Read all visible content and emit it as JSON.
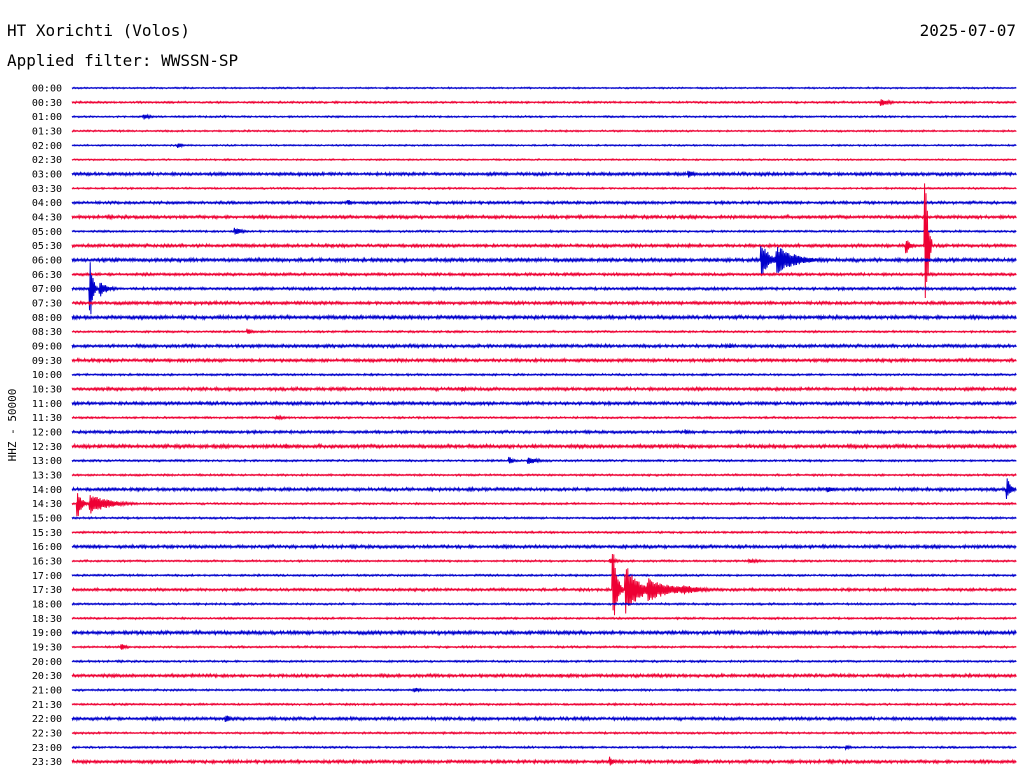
{
  "header": {
    "station": "HT Xorichti (Volos)",
    "date": "2025-07-07",
    "filter": "Applied filter: WWSSN-SP"
  },
  "colors": {
    "a": "#0000cc",
    "b": "#ee0033"
  },
  "chart_data": {
    "type": "line",
    "title": "HT Xorichti (Volos)",
    "subtitle": "Applied filter: WWSSN-SP",
    "ylabel": "HHZ - 50000",
    "grid": false,
    "x_unit": "minutes into row",
    "xlim": [
      0,
      30
    ],
    "row_labels": [
      "00:00",
      "00:30",
      "01:00",
      "01:30",
      "02:00",
      "02:30",
      "03:00",
      "03:30",
      "04:00",
      "04:30",
      "05:00",
      "05:30",
      "06:00",
      "06:30",
      "07:00",
      "07:30",
      "08:00",
      "08:30",
      "09:00",
      "09:30",
      "10:00",
      "10:30",
      "11:00",
      "11:30",
      "12:00",
      "12:30",
      "13:00",
      "13:30",
      "14:00",
      "14:30",
      "15:00",
      "15:30",
      "16:00",
      "16:30",
      "17:00",
      "17:30",
      "18:00",
      "18:30",
      "19:00",
      "19:30",
      "20:00",
      "20:30",
      "21:00",
      "21:30",
      "22:00",
      "22:30",
      "23:00",
      "23:30"
    ],
    "noise": [
      0.8,
      1.0,
      0.9,
      0.9,
      0.8,
      0.8,
      1.6,
      0.9,
      1.4,
      1.6,
      1.0,
      1.6,
      1.8,
      1.4,
      1.4,
      1.6,
      1.8,
      1.0,
      1.6,
      1.6,
      1.0,
      1.6,
      1.6,
      1.0,
      1.4,
      1.8,
      1.0,
      1.0,
      1.6,
      1.0,
      1.0,
      1.0,
      1.6,
      1.0,
      1.0,
      1.4,
      1.0,
      1.0,
      1.8,
      1.0,
      1.0,
      1.6,
      1.0,
      1.0,
      1.6,
      1.0,
      1.0,
      1.6
    ],
    "events": [
      {
        "row": 1,
        "t": 25.7,
        "amp": 4,
        "dur": 0.6
      },
      {
        "row": 2,
        "t": 2.3,
        "amp": 3,
        "dur": 0.5
      },
      {
        "row": 4,
        "t": 3.4,
        "amp": 3,
        "dur": 0.3
      },
      {
        "row": 6,
        "t": 19.6,
        "amp": 4,
        "dur": 0.4
      },
      {
        "row": 8,
        "t": 8.8,
        "amp": 3,
        "dur": 0.2
      },
      {
        "row": 10,
        "t": 5.2,
        "amp": 4,
        "dur": 0.6
      },
      {
        "row": 11,
        "t": 26.5,
        "amp": 8,
        "dur": 0.3
      },
      {
        "row": 11,
        "t": 27.1,
        "amp": 82,
        "dur": 0.2
      },
      {
        "row": 12,
        "t": 21.9,
        "amp": 18,
        "dur": 0.6
      },
      {
        "row": 12,
        "t": 22.4,
        "amp": 14,
        "dur": 1.5
      },
      {
        "row": 12,
        "t": 23.0,
        "amp": 5,
        "dur": 1.6
      },
      {
        "row": 14,
        "t": 0.6,
        "amp": 30,
        "dur": 0.2
      },
      {
        "row": 14,
        "t": 0.9,
        "amp": 8,
        "dur": 0.6
      },
      {
        "row": 17,
        "t": 5.6,
        "amp": 3,
        "dur": 0.4
      },
      {
        "row": 18,
        "t": 20.9,
        "amp": 3,
        "dur": 0.3
      },
      {
        "row": 21,
        "t": 12.4,
        "amp": 3,
        "dur": 0.3
      },
      {
        "row": 23,
        "t": 6.5,
        "amp": 2,
        "dur": 0.8
      },
      {
        "row": 24,
        "t": 19.5,
        "amp": 3,
        "dur": 0.3
      },
      {
        "row": 25,
        "t": 6.8,
        "amp": 3,
        "dur": 0.2
      },
      {
        "row": 26,
        "t": 13.9,
        "amp": 4,
        "dur": 0.3
      },
      {
        "row": 26,
        "t": 14.5,
        "amp": 4,
        "dur": 0.7
      },
      {
        "row": 28,
        "t": 24.0,
        "amp": 3,
        "dur": 0.8
      },
      {
        "row": 28,
        "t": 29.7,
        "amp": 11,
        "dur": 0.3
      },
      {
        "row": 29,
        "t": 0.2,
        "amp": 14,
        "dur": 0.3
      },
      {
        "row": 29,
        "t": 0.6,
        "amp": 10,
        "dur": 1.5
      },
      {
        "row": 33,
        "t": 17.1,
        "amp": 3,
        "dur": 0.6
      },
      {
        "row": 33,
        "t": 21.5,
        "amp": 2,
        "dur": 1.2
      },
      {
        "row": 35,
        "t": 17.2,
        "amp": 36,
        "dur": 0.3
      },
      {
        "row": 35,
        "t": 17.6,
        "amp": 26,
        "dur": 1.0
      },
      {
        "row": 35,
        "t": 18.3,
        "amp": 12,
        "dur": 1.8
      },
      {
        "row": 35,
        "t": 19.4,
        "amp": 5,
        "dur": 1.6
      },
      {
        "row": 39,
        "t": 1.6,
        "amp": 3,
        "dur": 0.4
      },
      {
        "row": 42,
        "t": 10.9,
        "amp": 3,
        "dur": 0.4
      },
      {
        "row": 44,
        "t": 4.9,
        "amp": 5,
        "dur": 0.3
      },
      {
        "row": 46,
        "t": 24.6,
        "amp": 2,
        "dur": 0.4
      },
      {
        "row": 47,
        "t": 17.1,
        "amp": 5,
        "dur": 0.3
      },
      {
        "row": 47,
        "t": 19.8,
        "amp": 3,
        "dur": 0.5
      }
    ]
  }
}
